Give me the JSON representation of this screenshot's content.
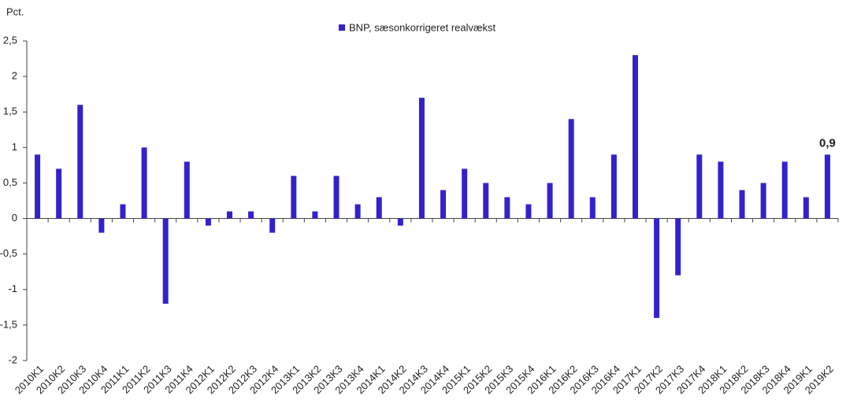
{
  "chart_data": {
    "type": "bar",
    "y_unit_label": "Pct.",
    "categories": [
      "2010K1",
      "2010K2",
      "2010K3",
      "2010K4",
      "2011K1",
      "2011K2",
      "2011K3",
      "2011K4",
      "2012K1",
      "2012K2",
      "2012K3",
      "2012K4",
      "2013K1",
      "2013K2",
      "2013K3",
      "2013K4",
      "2014K1",
      "2014K2",
      "2014K3",
      "2014K4",
      "2015K1",
      "2015K2",
      "2015K3",
      "2015K4",
      "2016K1",
      "2016K2",
      "2016K3",
      "2016K4",
      "2017K1",
      "2017K2",
      "2017K3",
      "2017K4",
      "2018K1",
      "2018K2",
      "2018K3",
      "2018K4",
      "2019K1",
      "2019K2"
    ],
    "series": [
      {
        "name": "BNP, sæsonkorrigeret realvækst",
        "color": "#3322cc",
        "values": [
          0.9,
          0.7,
          1.6,
          -0.2,
          0.2,
          1.0,
          -1.2,
          0.8,
          -0.1,
          0.1,
          0.1,
          -0.2,
          0.6,
          0.1,
          0.6,
          0.2,
          0.3,
          -0.1,
          1.7,
          0.4,
          0.7,
          0.5,
          0.3,
          0.2,
          0.5,
          1.4,
          0.3,
          0.9,
          2.3,
          -1.4,
          -0.8,
          0.9,
          0.8,
          0.4,
          0.5,
          0.8,
          0.3,
          0.9
        ],
        "value_labels": [
          null,
          null,
          null,
          null,
          null,
          null,
          null,
          null,
          null,
          null,
          null,
          null,
          null,
          null,
          null,
          null,
          null,
          null,
          null,
          null,
          null,
          null,
          null,
          null,
          null,
          null,
          null,
          null,
          null,
          null,
          null,
          null,
          null,
          null,
          null,
          null,
          null,
          "0,9"
        ]
      }
    ],
    "ylim": [
      -2,
      2.5
    ],
    "yticks": [
      -2,
      {
        "value": -1.5,
        "label": "-1,5"
      },
      -1,
      {
        "value": -0.5,
        "label": "-0,5"
      },
      0,
      {
        "value": 0.5,
        "label": "0,5"
      },
      1,
      {
        "value": 1.5,
        "label": "1,5"
      },
      2,
      {
        "value": 2.5,
        "label": "2,5"
      }
    ],
    "grid": false,
    "legend": "top"
  }
}
